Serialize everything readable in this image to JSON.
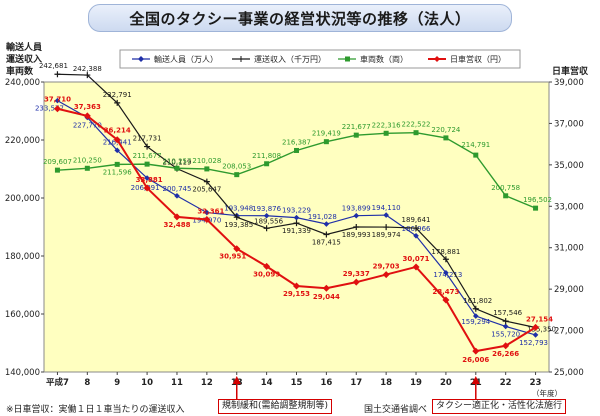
{
  "title": "全国のタクシー事業の経営状況等の推移（法人）",
  "left_axis_title": [
    "輸送人員",
    "運送収入",
    "車両数"
  ],
  "right_axis_title": "日車営収",
  "x_unit_label": "（年度）",
  "notes": {
    "footnote": "※日車営収：実働１日１車当たりの運送収入",
    "event1": "規制緩和(需給調整規制等)",
    "source": "国土交通省調べ",
    "event2": "タクシー適正化・活性化法施行"
  },
  "colors": {
    "passengers": "#1f2fa8",
    "revenue": "#1a1a1a",
    "vehicles": "#2e9a2e",
    "daily_revenue": "#e01010",
    "plot_bg": "#ffffc0",
    "annotation": "#d40000"
  },
  "chart_data": {
    "type": "line",
    "categories": [
      "平成7",
      "8",
      "9",
      "10",
      "11",
      "12",
      "13",
      "14",
      "15",
      "16",
      "17",
      "18",
      "19",
      "20",
      "21",
      "22",
      "23"
    ],
    "left_axis": {
      "min": 140000,
      "max": 240000,
      "ticks": [
        140000,
        160000,
        180000,
        200000,
        220000,
        240000
      ]
    },
    "right_axis": {
      "min": 25000,
      "max": 39000,
      "ticks": [
        25000,
        27000,
        29000,
        31000,
        33000,
        35000,
        37000,
        39000
      ]
    },
    "legend_position": "top",
    "series": [
      {
        "name": "輸送人員（万人）",
        "axis": "left",
        "marker": "diamond",
        "color_key": "passengers",
        "values": [
          233577,
          227770,
          216441,
          206891,
          200745,
          194970,
          193948,
          193876,
          193229,
          191028,
          193899,
          194110,
          186966,
          174213,
          159294,
          155720,
          152793
        ],
        "labels": [
          "233,577",
          "227,770",
          "216,441",
          "206,891",
          "200,745",
          "194,970",
          "193,948",
          "193,876",
          "193,229",
          "191,028",
          "193,899",
          "194,110",
          "186,966",
          "174,213",
          "159,294",
          "155,720",
          "152,793"
        ]
      },
      {
        "name": "運送収入（千万円）",
        "axis": "left",
        "marker": "plus",
        "color_key": "revenue",
        "values": [
          242681,
          242388,
          232791,
          217731,
          210119,
          205647,
          193385,
          189556,
          191339,
          187415,
          189993,
          189974,
          189641,
          178881,
          161802,
          157546,
          155350
        ],
        "labels": [
          "242,681",
          "242,388",
          "232,791",
          "217,731",
          "210,119",
          "205,647",
          "193,385",
          "189,556",
          "191,339",
          "187,415",
          "189,993",
          "189,974",
          "189,641",
          "178,881",
          "161,802",
          "157,546",
          "155,350"
        ]
      },
      {
        "name": "車両数（両）",
        "axis": "left",
        "marker": "square",
        "color_key": "vehicles",
        "values": [
          209607,
          210250,
          211596,
          211677,
          210257,
          210028,
          208053,
          211808,
          216387,
          219419,
          221677,
          222316,
          222522,
          220724,
          214791,
          200758,
          196502
        ],
        "labels": [
          "209,607",
          "210,250",
          "211,596",
          "211,677",
          "210,257",
          "210,028",
          "208,053",
          "211,808",
          "216,387",
          "219,419",
          "221,677",
          "222,316",
          "222,522",
          "220,724",
          "214,791",
          "200,758",
          "196,502"
        ]
      },
      {
        "name": "日車営収（円）",
        "axis": "right",
        "marker": "diamond",
        "color_key": "daily_revenue",
        "values": [
          37710,
          37363,
          36214,
          33881,
          32488,
          32361,
          30951,
          30099,
          29153,
          29044,
          29337,
          29703,
          30071,
          28473,
          26006,
          26266,
          27154
        ],
        "labels": [
          "37,710",
          "37,363",
          "36,214",
          "33,881",
          "32,488",
          "32,361",
          "30,951",
          "30,099",
          "29,153",
          "29,044",
          "29,337",
          "29,703",
          "30,071",
          "28,473",
          "26,006",
          "26,266",
          "27,154"
        ]
      }
    ],
    "tick_labels_left": [
      "140,000",
      "160,000",
      "180,000",
      "200,000",
      "220,000",
      "240,000"
    ],
    "tick_labels_right": [
      "25,000",
      "27,000",
      "29,000",
      "31,000",
      "33,000",
      "35,000",
      "37,000",
      "39,000"
    ],
    "event_markers": [
      {
        "category": "13",
        "note_key": "event1"
      },
      {
        "category": "21",
        "note_key": "event2"
      }
    ]
  }
}
